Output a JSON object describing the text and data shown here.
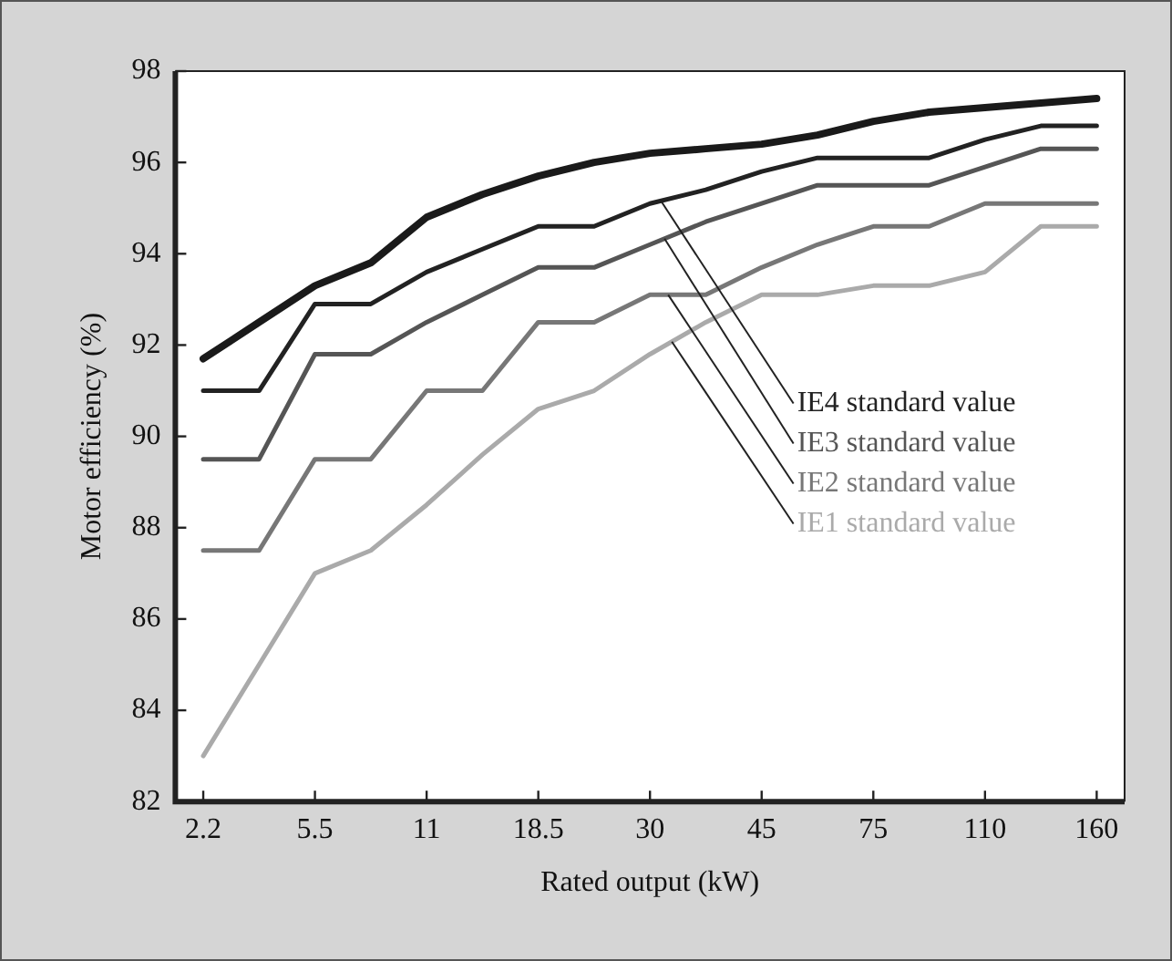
{
  "chart_data": {
    "type": "line",
    "xlabel": "Rated output (kW)",
    "ylabel": "Motor efficiency (%)",
    "categories": [
      "2.2",
      null,
      "5.5",
      null,
      "11",
      null,
      "18.5",
      null,
      "30",
      null,
      "45",
      null,
      "75",
      null,
      "110",
      null,
      "160"
    ],
    "series": [
      {
        "color": "#1a1a1a",
        "values": [
          91.7,
          92.5,
          93.3,
          93.8,
          94.8,
          95.3,
          95.7,
          96.0,
          96.2,
          96.3,
          96.4,
          96.6,
          96.9,
          97.1,
          97.2,
          97.3,
          97.4
        ]
      },
      {
        "name": "IE4 standard value",
        "color": "#222222",
        "values": [
          91.0,
          91.0,
          92.9,
          92.9,
          93.6,
          94.1,
          94.6,
          94.6,
          95.1,
          95.4,
          95.8,
          96.1,
          96.1,
          96.1,
          96.5,
          96.8,
          96.8
        ]
      },
      {
        "name": "IE3 standard value",
        "color": "#555555",
        "values": [
          89.5,
          89.5,
          91.8,
          91.8,
          92.5,
          93.1,
          93.7,
          93.7,
          94.2,
          94.7,
          95.1,
          95.5,
          95.5,
          95.5,
          95.9,
          96.3,
          96.3
        ]
      },
      {
        "name": "IE2 standard value",
        "color": "#777777",
        "values": [
          87.5,
          87.5,
          89.5,
          89.5,
          91.0,
          91.0,
          92.5,
          92.5,
          93.1,
          93.1,
          93.7,
          94.2,
          94.6,
          94.6,
          95.1,
          95.1,
          95.1
        ]
      },
      {
        "name": "IE1 standard value",
        "color": "#aaaaaa",
        "values": [
          83.0,
          85.0,
          87.0,
          87.5,
          88.5,
          89.6,
          90.6,
          91.0,
          91.8,
          92.5,
          93.1,
          93.1,
          93.3,
          93.3,
          93.6,
          94.6,
          94.6
        ]
      }
    ],
    "ylim": [
      82,
      98
    ],
    "yticks": [
      82,
      84,
      86,
      88,
      90,
      92,
      94,
      96,
      98
    ],
    "grid": false,
    "legend": false,
    "marker": "none",
    "line_style": "solid"
  }
}
